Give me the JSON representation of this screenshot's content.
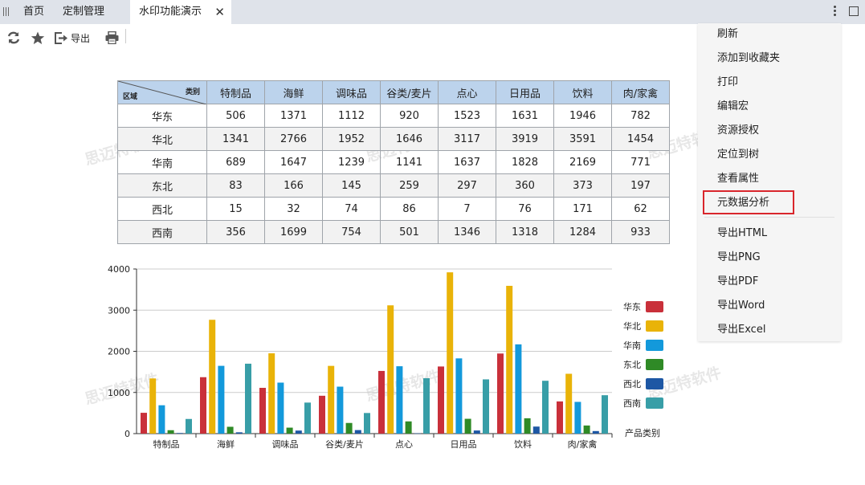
{
  "tabs": {
    "home": "首页",
    "custom": "定制管理",
    "active": "水印功能演示"
  },
  "toolbar": {
    "export_label": "导出"
  },
  "watermark": "思迈特软件",
  "table": {
    "corner_col": "类别",
    "corner_row": "区域",
    "columns": [
      "特制品",
      "海鲜",
      "调味品",
      "谷类/麦片",
      "点心",
      "日用品",
      "饮料",
      "肉/家禽"
    ],
    "rows": [
      {
        "region": "华东",
        "values": [
          "506",
          "1371",
          "1112",
          "920",
          "1523",
          "1631",
          "1946",
          "782"
        ]
      },
      {
        "region": "华北",
        "values": [
          "1341",
          "2766",
          "1952",
          "1646",
          "3117",
          "3919",
          "3591",
          "1454"
        ]
      },
      {
        "region": "华南",
        "values": [
          "689",
          "1647",
          "1239",
          "1141",
          "1637",
          "1828",
          "2169",
          "771"
        ]
      },
      {
        "region": "东北",
        "values": [
          "83",
          "166",
          "145",
          "259",
          "297",
          "360",
          "373",
          "197"
        ]
      },
      {
        "region": "西北",
        "values": [
          "15",
          "32",
          "74",
          "86",
          "7",
          "76",
          "171",
          "62"
        ]
      },
      {
        "region": "西南",
        "values": [
          "356",
          "1699",
          "754",
          "501",
          "1346",
          "1318",
          "1284",
          "933"
        ]
      }
    ]
  },
  "chart_data": {
    "type": "bar",
    "categories": [
      "特制品",
      "海鲜",
      "调味品",
      "谷类/麦片",
      "点心",
      "日用品",
      "饮料",
      "肉/家禽"
    ],
    "series": [
      {
        "name": "华东",
        "color": "#c9303a",
        "values": [
          506,
          1371,
          1112,
          920,
          1523,
          1631,
          1946,
          782
        ]
      },
      {
        "name": "华北",
        "color": "#e9b308",
        "values": [
          1341,
          2766,
          1952,
          1646,
          3117,
          3919,
          3591,
          1454
        ]
      },
      {
        "name": "华南",
        "color": "#1399db",
        "values": [
          689,
          1647,
          1239,
          1141,
          1637,
          1828,
          2169,
          771
        ]
      },
      {
        "name": "东北",
        "color": "#2f8a26",
        "values": [
          83,
          166,
          145,
          259,
          297,
          360,
          373,
          197
        ]
      },
      {
        "name": "西北",
        "color": "#1d57a4",
        "values": [
          15,
          32,
          74,
          86,
          7,
          76,
          171,
          62
        ]
      },
      {
        "name": "西南",
        "color": "#389ea7",
        "values": [
          356,
          1699,
          754,
          501,
          1346,
          1318,
          1284,
          933
        ]
      }
    ],
    "xlabel": "产品类别",
    "ylabel": "",
    "ylim": [
      0,
      4000
    ],
    "yticks": [
      "0",
      "1000",
      "2000",
      "3000",
      "4000"
    ],
    "grid": true,
    "legend": "right"
  },
  "menu": {
    "items": [
      "刷新",
      "添加到收藏夹",
      "打印",
      "编辑宏",
      "资源授权",
      "定位到树",
      "查看属性",
      "元数据分析",
      "导出HTML",
      "导出PNG",
      "导出PDF",
      "导出Word",
      "导出Excel"
    ],
    "highlighted": "元数据分析"
  }
}
